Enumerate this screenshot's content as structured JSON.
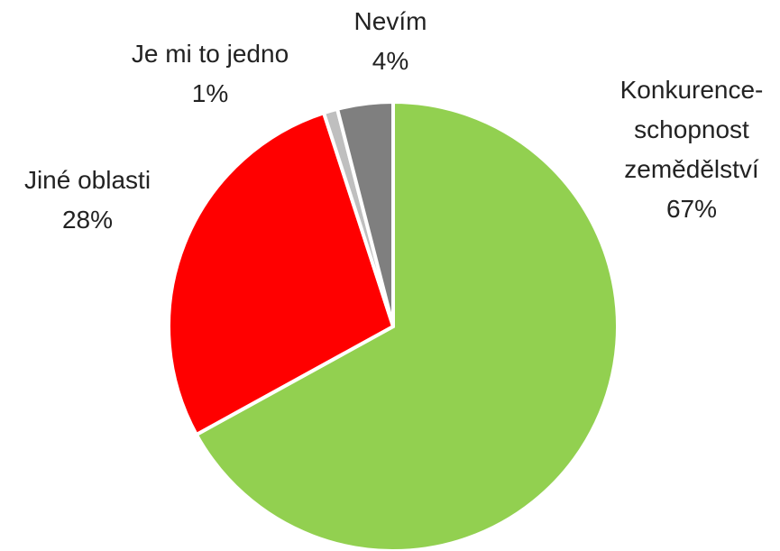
{
  "chart_data": {
    "type": "pie",
    "categories": [
      "Konkurence-\nschopnost\nzemědělství",
      "Jiné oblasti",
      "Je mi to jedno",
      "Nevím"
    ],
    "values": [
      67,
      28,
      1,
      4
    ],
    "value_labels": [
      "67%",
      "28%",
      "1%",
      "4%"
    ],
    "colors": [
      "#92d050",
      "#ff0000",
      "#bfbfbf",
      "#7f7f7f"
    ]
  }
}
